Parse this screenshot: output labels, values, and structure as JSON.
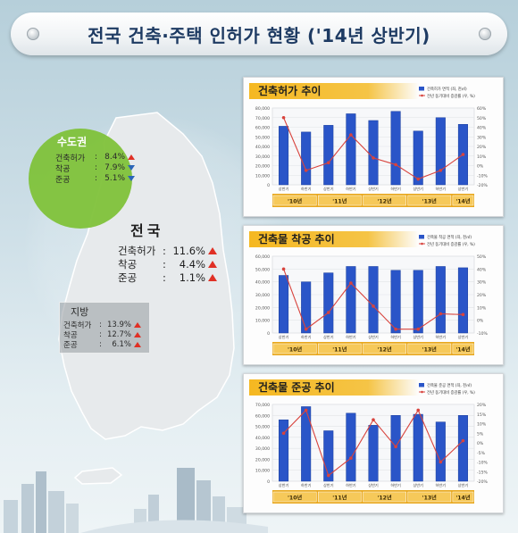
{
  "title": "전국 건축·주택 인허가 현황 ('14년 상반기)",
  "regions": {
    "metro": {
      "name": "수도권",
      "rows": [
        {
          "label": "건축허가",
          "value": "8.4%",
          "dir": "up"
        },
        {
          "label": "착공",
          "value": "7.9%",
          "dir": "down"
        },
        {
          "label": "준공",
          "value": "5.1%",
          "dir": "down"
        }
      ]
    },
    "national": {
      "name": "전국",
      "rows": [
        {
          "label": "건축허가",
          "value": "11.6%",
          "dir": "up"
        },
        {
          "label": "착공",
          "value": "4.4%",
          "dir": "up"
        },
        {
          "label": "준공",
          "value": "1.1%",
          "dir": "up"
        }
      ]
    },
    "local": {
      "name": "지방",
      "rows": [
        {
          "label": "건축허가",
          "value": "13.9%",
          "dir": "up"
        },
        {
          "label": "착공",
          "value": "12.7%",
          "dir": "up"
        },
        {
          "label": "준공",
          "value": "6.1%",
          "dir": "up"
        }
      ]
    }
  },
  "colors": {
    "bar": "#2a55c8",
    "line": "#d8433d",
    "metro_green": "#7fc23a",
    "map": "#e7eaec",
    "banner_text": "#1e3b63",
    "title_bg": "#f5b821"
  },
  "chart_data": [
    {
      "type": "bar",
      "title": "건축허가 추이",
      "categories": [
        "상반기",
        "하반기",
        "상반기",
        "하반기",
        "상반기",
        "하반기",
        "상반기",
        "하반기",
        "상반기"
      ],
      "year_groups": [
        "'10년",
        "'11년",
        "'12년",
        "'13년",
        "'14년"
      ],
      "series": [
        {
          "name": "건축허가 면적 (좌, 천㎡)",
          "kind": "bar",
          "axis": "left",
          "values": [
            61000,
            55000,
            62000,
            74000,
            67000,
            76500,
            56000,
            70000,
            63000
          ]
        },
        {
          "name": "전년 동기대비 증감률 (우, %)",
          "kind": "line",
          "axis": "right",
          "values": [
            50,
            -5,
            3,
            32,
            8,
            1,
            -14,
            -5,
            11.6
          ]
        }
      ],
      "ylim_left": [
        0,
        80000
      ],
      "yticks_left": [
        "0",
        "10,000",
        "20,000",
        "30,000",
        "40,000",
        "50,000",
        "60,000",
        "70,000",
        "80,000"
      ],
      "ylim_right": [
        -20,
        60
      ],
      "yticks_right": [
        "-20%",
        "-10%",
        "0%",
        "10%",
        "20%",
        "30%",
        "40%",
        "50%",
        "60%"
      ],
      "legend": "top-right"
    },
    {
      "type": "bar",
      "title": "건축물 착공 추이",
      "categories": [
        "상반기",
        "하반기",
        "상반기",
        "하반기",
        "상반기",
        "하반기",
        "상반기",
        "하반기",
        "상반기"
      ],
      "year_groups": [
        "'10년",
        "'11년",
        "'12년",
        "'13년",
        "'14년"
      ],
      "series": [
        {
          "name": "건축물 착공 면적 (좌, 천㎡)",
          "kind": "bar",
          "axis": "left",
          "values": [
            45000,
            40000,
            47000,
            52000,
            52000,
            49000,
            49000,
            52000,
            51000
          ]
        },
        {
          "name": "전년 동기대비 증감률 (우, %)",
          "kind": "line",
          "axis": "right",
          "values": [
            40,
            -7,
            6,
            29,
            11,
            -7,
            -7,
            5,
            4.4
          ]
        }
      ],
      "ylim_left": [
        0,
        60000
      ],
      "yticks_left": [
        "0",
        "10,000",
        "20,000",
        "30,000",
        "40,000",
        "50,000",
        "60,000"
      ],
      "ylim_right": [
        -10,
        50
      ],
      "yticks_right": [
        "-10%",
        "0%",
        "10%",
        "20%",
        "30%",
        "40%",
        "50%"
      ],
      "legend": "top-right"
    },
    {
      "type": "bar",
      "title": "건축물 준공 추이",
      "categories": [
        "상반기",
        "하반기",
        "상반기",
        "하반기",
        "상반기",
        "하반기",
        "상반기",
        "하반기",
        "상반기"
      ],
      "year_groups": [
        "'10년",
        "'11년",
        "'12년",
        "'13년",
        "'14년"
      ],
      "series": [
        {
          "name": "건축물 준공 면적 (좌, 천㎡)",
          "kind": "bar",
          "axis": "left",
          "values": [
            56000,
            68000,
            46000,
            62000,
            51000,
            60000,
            61000,
            54000,
            60000
          ]
        },
        {
          "name": "전년 동기대비 증감률 (우, %)",
          "kind": "line",
          "axis": "right",
          "values": [
            5,
            17,
            -17,
            -8,
            12,
            -2,
            17,
            -10,
            1.1
          ]
        }
      ],
      "ylim_left": [
        0,
        70000
      ],
      "yticks_left": [
        "0",
        "10,000",
        "20,000",
        "30,000",
        "40,000",
        "50,000",
        "60,000",
        "70,000"
      ],
      "ylim_right": [
        -20,
        20
      ],
      "yticks_right": [
        "-20%",
        "-15%",
        "-10%",
        "-5%",
        "0%",
        "5%",
        "10%",
        "15%",
        "20%"
      ],
      "legend": "top-right"
    }
  ]
}
